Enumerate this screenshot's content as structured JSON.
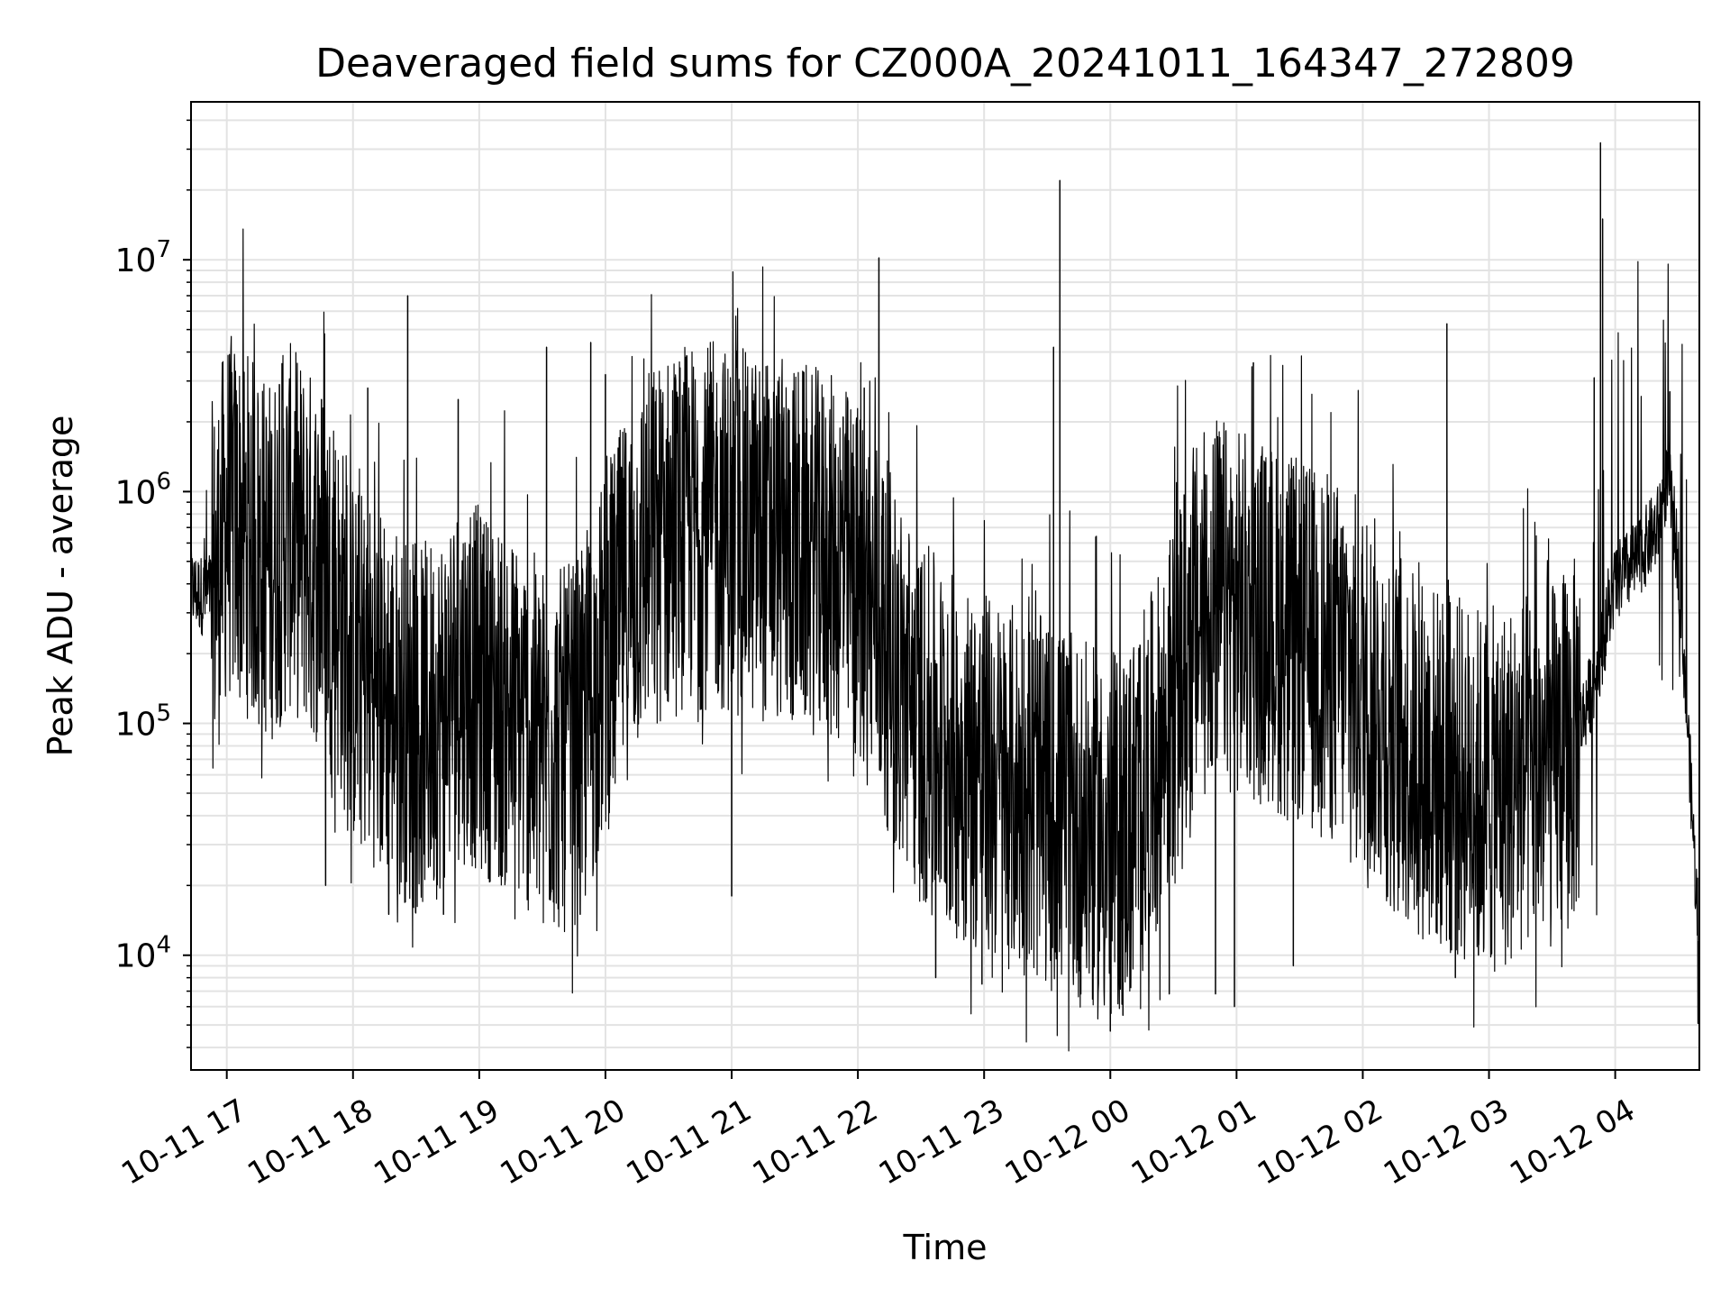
{
  "chart_data": {
    "type": "line",
    "title": "Deaveraged field sums for CZ000A_20241011_164347_272809",
    "xlabel": "Time",
    "ylabel": "Peak ADU - average",
    "y_scale": "log",
    "ylim": [
      3200,
      48000000
    ],
    "xlim": [
      "2024-10-11 16:43",
      "2024-10-12 04:40"
    ],
    "grid": true,
    "x_ticks": [
      {
        "value": "2024-10-11 17:00",
        "label": "10-11 17"
      },
      {
        "value": "2024-10-11 18:00",
        "label": "10-11 18"
      },
      {
        "value": "2024-10-11 19:00",
        "label": "10-11 19"
      },
      {
        "value": "2024-10-11 20:00",
        "label": "10-11 20"
      },
      {
        "value": "2024-10-11 21:00",
        "label": "10-11 21"
      },
      {
        "value": "2024-10-11 22:00",
        "label": "10-11 22"
      },
      {
        "value": "2024-10-11 23:00",
        "label": "10-11 23"
      },
      {
        "value": "2024-10-12 00:00",
        "label": "10-12 00"
      },
      {
        "value": "2024-10-12 01:00",
        "label": "10-12 01"
      },
      {
        "value": "2024-10-12 02:00",
        "label": "10-12 02"
      },
      {
        "value": "2024-10-12 03:00",
        "label": "10-12 03"
      },
      {
        "value": "2024-10-12 04:00",
        "label": "10-12 04"
      }
    ],
    "y_ticks": [
      {
        "value": 10000,
        "base": "10",
        "exp": "4"
      },
      {
        "value": 100000,
        "base": "10",
        "exp": "5"
      },
      {
        "value": 1000000,
        "base": "10",
        "exp": "6"
      },
      {
        "value": 10000000,
        "base": "10",
        "exp": "7"
      }
    ],
    "series": [
      {
        "color": "#000000",
        "x": [
          "2024-10-11 16:43",
          "2024-10-11 16:50",
          "2024-10-11 16:55",
          "2024-10-11 17:00",
          "2024-10-11 17:10",
          "2024-10-11 17:20",
          "2024-10-11 17:30",
          "2024-10-11 17:40",
          "2024-10-11 17:50",
          "2024-10-11 18:00",
          "2024-10-11 18:10",
          "2024-10-11 18:20",
          "2024-10-11 18:30",
          "2024-10-11 18:40",
          "2024-10-11 18:50",
          "2024-10-11 19:00",
          "2024-10-11 19:10",
          "2024-10-11 19:20",
          "2024-10-11 19:30",
          "2024-10-11 19:40",
          "2024-10-11 19:50",
          "2024-10-11 20:00",
          "2024-10-11 20:10",
          "2024-10-11 20:20",
          "2024-10-11 20:30",
          "2024-10-11 20:40",
          "2024-10-11 20:50",
          "2024-10-11 21:00",
          "2024-10-11 21:10",
          "2024-10-11 21:20",
          "2024-10-11 21:30",
          "2024-10-11 21:40",
          "2024-10-11 21:50",
          "2024-10-11 22:00",
          "2024-10-11 22:10",
          "2024-10-11 22:20",
          "2024-10-11 22:30",
          "2024-10-11 22:40",
          "2024-10-11 22:50",
          "2024-10-11 23:00",
          "2024-10-11 23:10",
          "2024-10-11 23:20",
          "2024-10-11 23:30",
          "2024-10-11 23:40",
          "2024-10-11 23:50",
          "2024-10-12 00:00",
          "2024-10-12 00:10",
          "2024-10-12 00:20",
          "2024-10-12 00:30",
          "2024-10-12 00:40",
          "2024-10-12 00:50",
          "2024-10-12 01:00",
          "2024-10-12 01:10",
          "2024-10-12 01:20",
          "2024-10-12 01:30",
          "2024-10-12 01:40",
          "2024-10-12 01:50",
          "2024-10-12 02:00",
          "2024-10-12 02:10",
          "2024-10-12 02:20",
          "2024-10-12 02:30",
          "2024-10-12 02:40",
          "2024-10-12 02:50",
          "2024-10-12 03:00",
          "2024-10-12 03:10",
          "2024-10-12 03:20",
          "2024-10-12 03:30",
          "2024-10-12 03:40",
          "2024-10-12 03:50",
          "2024-10-12 04:00",
          "2024-10-12 04:10",
          "2024-10-12 04:20",
          "2024-10-12 04:25",
          "2024-10-12 04:30",
          "2024-10-12 04:35",
          "2024-10-12 04:40"
        ],
        "y": [
          380000,
          350000,
          420000,
          800000,
          650000,
          500000,
          700000,
          550000,
          400000,
          180000,
          150000,
          120000,
          90000,
          110000,
          160000,
          140000,
          120000,
          100000,
          80000,
          75000,
          90000,
          200000,
          350000,
          550000,
          650000,
          700000,
          720000,
          680000,
          650000,
          620000,
          580000,
          550000,
          500000,
          400000,
          280000,
          150000,
          100000,
          80000,
          70000,
          60000,
          55000,
          50000,
          45000,
          40000,
          35000,
          30000,
          40000,
          60000,
          120000,
          250000,
          350000,
          300000,
          280000,
          250000,
          220000,
          200000,
          180000,
          150000,
          110000,
          80000,
          70000,
          60000,
          55000,
          50000,
          55000,
          60000,
          65000,
          80000,
          150000,
          400000,
          500000,
          700000,
          1200000,
          500000,
          80000,
          10000
        ],
        "peaks": [
          {
            "x": "2024-10-11 16:58",
            "y": 3300000
          },
          {
            "x": "2024-10-11 17:25",
            "y": 2900000
          },
          {
            "x": "2024-10-11 17:45",
            "y": 2500000
          },
          {
            "x": "2024-10-11 18:07",
            "y": 2800000
          },
          {
            "x": "2024-10-11 18:26",
            "y": 7000000
          },
          {
            "x": "2024-10-11 18:50",
            "y": 2500000
          },
          {
            "x": "2024-10-11 19:32",
            "y": 4200000
          },
          {
            "x": "2024-10-11 19:53",
            "y": 4400000
          },
          {
            "x": "2024-10-11 20:00",
            "y": 3200000
          },
          {
            "x": "2024-10-11 20:57",
            "y": 2500000
          },
          {
            "x": "2024-10-11 21:53",
            "y": 2100000
          },
          {
            "x": "2024-10-11 22:03",
            "y": 2800000
          },
          {
            "x": "2024-10-11 22:10",
            "y": 10200000
          },
          {
            "x": "2024-10-11 23:36",
            "y": 22000000
          },
          {
            "x": "2024-10-11 23:33",
            "y": 4200000
          },
          {
            "x": "2024-10-12 01:08",
            "y": 3600000
          },
          {
            "x": "2024-10-12 02:40",
            "y": 5300000
          },
          {
            "x": "2024-10-12 03:50",
            "y": 3100000
          },
          {
            "x": "2024-10-12 03:53",
            "y": 32000000
          },
          {
            "x": "2024-10-12 03:54",
            "y": 15000000
          },
          {
            "x": "2024-10-12 04:26",
            "y": 2700000
          }
        ],
        "dips": [
          {
            "x": "2024-10-11 17:47",
            "y": 20000
          },
          {
            "x": "2024-10-11 18:17",
            "y": 15000
          },
          {
            "x": "2024-10-11 18:43",
            "y": 15000
          },
          {
            "x": "2024-10-11 19:48",
            "y": 15000
          },
          {
            "x": "2024-10-11 21:00",
            "y": 18000
          },
          {
            "x": "2024-10-11 22:37",
            "y": 8000
          },
          {
            "x": "2024-10-11 22:59",
            "y": 7500
          },
          {
            "x": "2024-10-12 00:00",
            "y": 4700
          },
          {
            "x": "2024-10-12 00:06",
            "y": 5500
          },
          {
            "x": "2024-10-12 00:28",
            "y": 6800
          },
          {
            "x": "2024-10-12 00:50",
            "y": 6800
          },
          {
            "x": "2024-10-12 00:59",
            "y": 6000
          },
          {
            "x": "2024-10-12 01:27",
            "y": 9000
          },
          {
            "x": "2024-10-12 02:44",
            "y": 8000
          },
          {
            "x": "2024-10-12 02:55",
            "y": 10000
          }
        ]
      }
    ]
  }
}
